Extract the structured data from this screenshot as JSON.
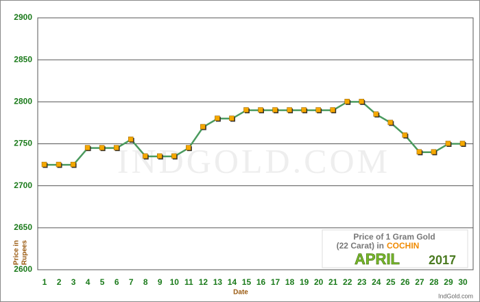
{
  "chart_data": {
    "type": "line",
    "categories": [
      "1",
      "2",
      "3",
      "4",
      "5",
      "6",
      "7",
      "8",
      "9",
      "10",
      "11",
      "12",
      "13",
      "14",
      "15",
      "16",
      "17",
      "18",
      "19",
      "20",
      "21",
      "22",
      "23",
      "24",
      "25",
      "26",
      "27",
      "28",
      "29",
      "30"
    ],
    "series": [
      {
        "name": "Price",
        "color": "#4a9a5e",
        "marker_color": "#f5a800",
        "values": [
          2725,
          2725,
          2725,
          2745,
          2745,
          2745,
          2755,
          2735,
          2735,
          2735,
          2745,
          2770,
          2780,
          2780,
          2790,
          2790,
          2790,
          2790,
          2790,
          2790,
          2790,
          2800,
          2800,
          2785,
          2775,
          2760,
          2740,
          2740,
          2750,
          2750
        ]
      }
    ],
    "ylim": [
      2600,
      2900
    ],
    "yticks": [
      2600,
      2650,
      2700,
      2750,
      2800,
      2850,
      2900
    ],
    "grid": true,
    "xlabel": "Date",
    "ylabel_lines": [
      "Price in",
      "Rupees"
    ],
    "watermark": "INDGOLD.COM",
    "legend_box": {
      "line1": "Price of 1 Gram Gold",
      "line2": "(22 Carat) in",
      "city": "COCHIN",
      "month": "APRIL",
      "year": "2017"
    },
    "credit": "IndGold.com"
  }
}
